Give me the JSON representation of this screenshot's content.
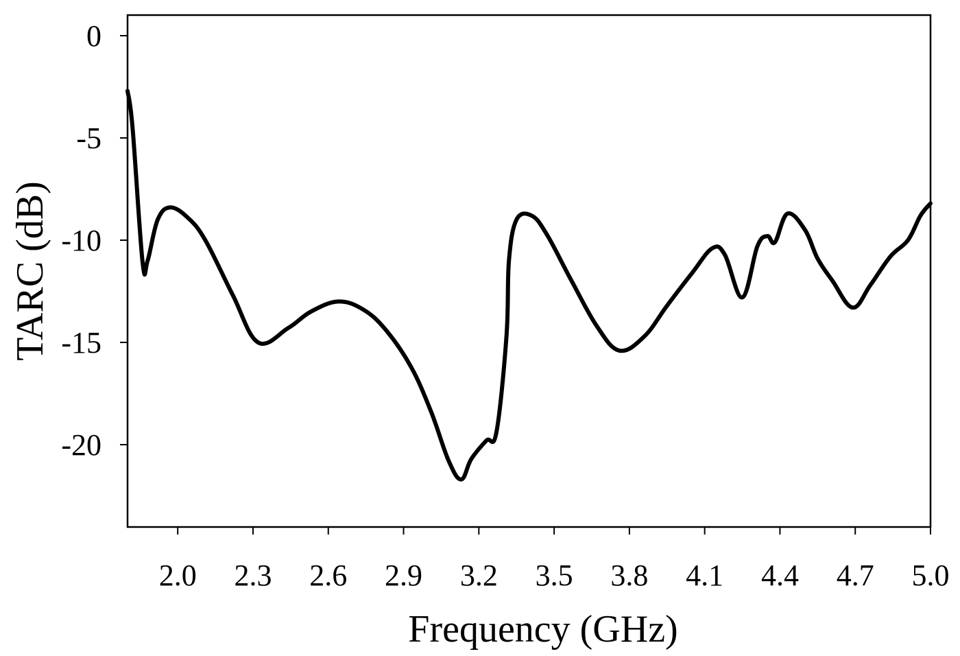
{
  "chart_data": {
    "type": "line",
    "title": "",
    "xlabel": "Frequency (GHz)",
    "ylabel": "TARC (dB)",
    "xlim": [
      1.8,
      5.0
    ],
    "ylim": [
      -24,
      1
    ],
    "grid": false,
    "legend": null,
    "x_ticks": [
      "2.0",
      "2.3",
      "2.6",
      "2.9",
      "3.2",
      "3.5",
      "3.8",
      "4.1",
      "4.4",
      "4.7",
      "5.0"
    ],
    "x_tick_values": [
      2.0,
      2.3,
      2.6,
      2.9,
      3.2,
      3.5,
      3.8,
      4.1,
      4.4,
      4.7,
      5.0
    ],
    "y_ticks": [
      "0",
      "-5",
      "-10",
      "-15",
      "-20"
    ],
    "y_tick_values": [
      0,
      -5,
      -10,
      -15,
      -20
    ],
    "line_color": "#000000",
    "series": [
      {
        "name": "TARC",
        "x": [
          1.8,
          1.82,
          1.86,
          1.88,
          1.92,
          1.97,
          2.04,
          2.11,
          2.22,
          2.32,
          2.44,
          2.53,
          2.64,
          2.74,
          2.83,
          2.93,
          3.01,
          3.08,
          3.13,
          3.17,
          3.23,
          3.27,
          3.31,
          3.32,
          3.35,
          3.41,
          3.47,
          3.57,
          3.67,
          3.76,
          3.86,
          3.95,
          4.05,
          4.13,
          4.18,
          4.25,
          4.31,
          4.35,
          4.38,
          4.43,
          4.5,
          4.55,
          4.61,
          4.69,
          4.76,
          4.84,
          4.91,
          4.96,
          5.0
        ],
        "values": [
          -2.7,
          -4.5,
          -11.1,
          -11.0,
          -9.0,
          -8.4,
          -8.9,
          -10.0,
          -12.7,
          -15.0,
          -14.3,
          -13.5,
          -13.0,
          -13.4,
          -14.4,
          -16.2,
          -18.4,
          -20.8,
          -21.7,
          -20.7,
          -19.8,
          -19.4,
          -14.7,
          -11.0,
          -9.0,
          -8.8,
          -9.7,
          -12.0,
          -14.2,
          -15.4,
          -14.7,
          -13.2,
          -11.6,
          -10.4,
          -10.7,
          -12.8,
          -10.3,
          -9.8,
          -10.1,
          -8.7,
          -9.5,
          -10.9,
          -12.0,
          -13.3,
          -12.2,
          -10.8,
          -10.0,
          -8.8,
          -8.2
        ]
      }
    ]
  }
}
